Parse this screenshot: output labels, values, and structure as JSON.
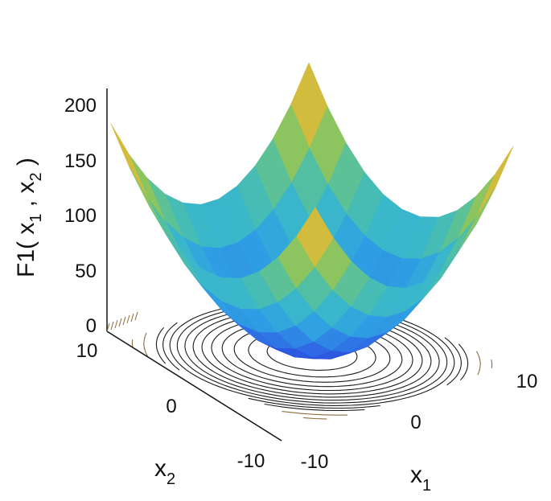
{
  "chart_data": {
    "type": "surface",
    "z_label": {
      "text": "F1( x",
      "sub1": "1",
      "mid": " , x",
      "sub2": "2",
      "end": " )"
    },
    "x1_label": {
      "text": "x",
      "sub": "1"
    },
    "x2_label": {
      "text": "x",
      "sub": "2"
    },
    "x1_ticks": [
      "-10",
      "0",
      "10"
    ],
    "x2_ticks": [
      "-10",
      "0",
      "10"
    ],
    "z_ticks": [
      "0",
      "50",
      "100",
      "150",
      "200"
    ],
    "x1_range": [
      -10,
      10
    ],
    "x2_range": [
      -10,
      10
    ],
    "z_range": [
      0,
      200
    ],
    "function": "x1^2 + x2^2",
    "grid_resolution": 11,
    "contour_levels": [
      10,
      20,
      30,
      40,
      50,
      60,
      70,
      80,
      90,
      100,
      110,
      120,
      140,
      160,
      180,
      200
    ],
    "colormap": [
      "#2a3bd8",
      "#2f6de6",
      "#2f9fe3",
      "#3ab8c9",
      "#5ec292",
      "#9cc64e",
      "#e0b93a",
      "#f2a93f"
    ]
  }
}
